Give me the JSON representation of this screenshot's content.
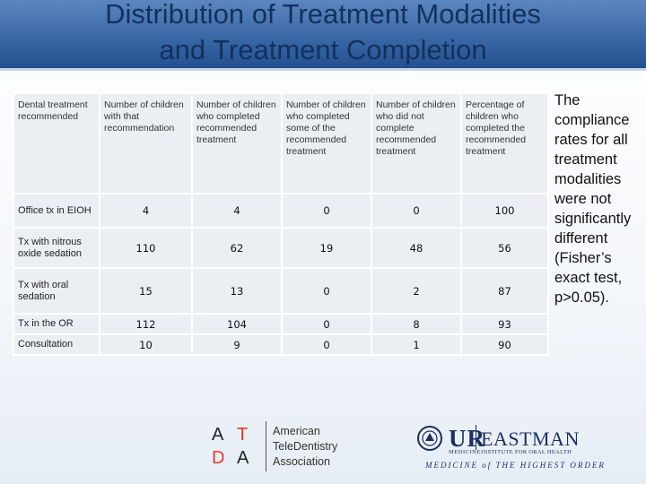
{
  "title_lines": [
    "Distribution of  Treatment Modalities",
    "and Treatment Completion"
  ],
  "table": {
    "headers": [
      "Dental treatment recommended",
      "Number of children with that recommendation",
      "Number of children who completed recommended treatment",
      "Number of children who completed some of the recommended treatment",
      "Number of children who did not complete recommended treatment",
      "Percentage of children who completed the recommended treatment"
    ],
    "rows": [
      [
        "Office tx in EIOH",
        "4",
        "4",
        "0",
        "0",
        "100"
      ],
      [
        "Tx with nitrous oxide sedation",
        "110",
        "62",
        "19",
        "48",
        "56"
      ],
      [
        "Tx with oral sedation",
        "15",
        "13",
        "0",
        "2",
        "87"
      ],
      [
        "Tx in the OR",
        "112",
        "104",
        "0",
        "8",
        "93"
      ],
      [
        "Consultation",
        "10",
        "9",
        "0",
        "1",
        "90"
      ]
    ]
  },
  "side_note_lines": [
    "The",
    "compliance",
    "rates for all",
    "treatment",
    "modalities",
    "were not",
    " significantly",
    "different",
    "(Fisher’s",
    "exact test,",
    "p>0.05)."
  ],
  "logos": {
    "atda_letters": [
      "A",
      "T",
      "D",
      "A"
    ],
    "atda_name_lines": [
      "American",
      "TeleDentistry",
      "Association"
    ],
    "ur_text": "UR",
    "ur_sub": "MEDICINE",
    "eastman_text": "EASTMAN",
    "eastman_sub": "INSTITUTE FOR ORAL HEALTH",
    "tagline": "MEDICINE of THE HIGHEST ORDER"
  },
  "colors": {
    "title_bar": "#3a68a6",
    "title_text": "#13315d",
    "table_cell": "#ebeef3",
    "atda_red": "#e23b2e",
    "ur_navy": "#1d2f5e"
  }
}
